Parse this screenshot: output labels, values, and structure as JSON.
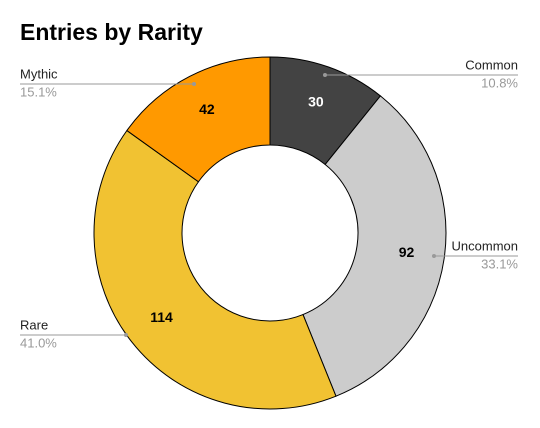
{
  "chart_data": {
    "type": "donut",
    "title": "Entries by Rarity",
    "categories": [
      "Common",
      "Uncommon",
      "Rare",
      "Mythic"
    ],
    "values": [
      30,
      92,
      114,
      42
    ],
    "percent_labels": [
      "10.8%",
      "33.1%",
      "41.0%",
      "15.1%"
    ],
    "colors": [
      "#434343",
      "#cccccc",
      "#f1c232",
      "#ff9900"
    ]
  }
}
